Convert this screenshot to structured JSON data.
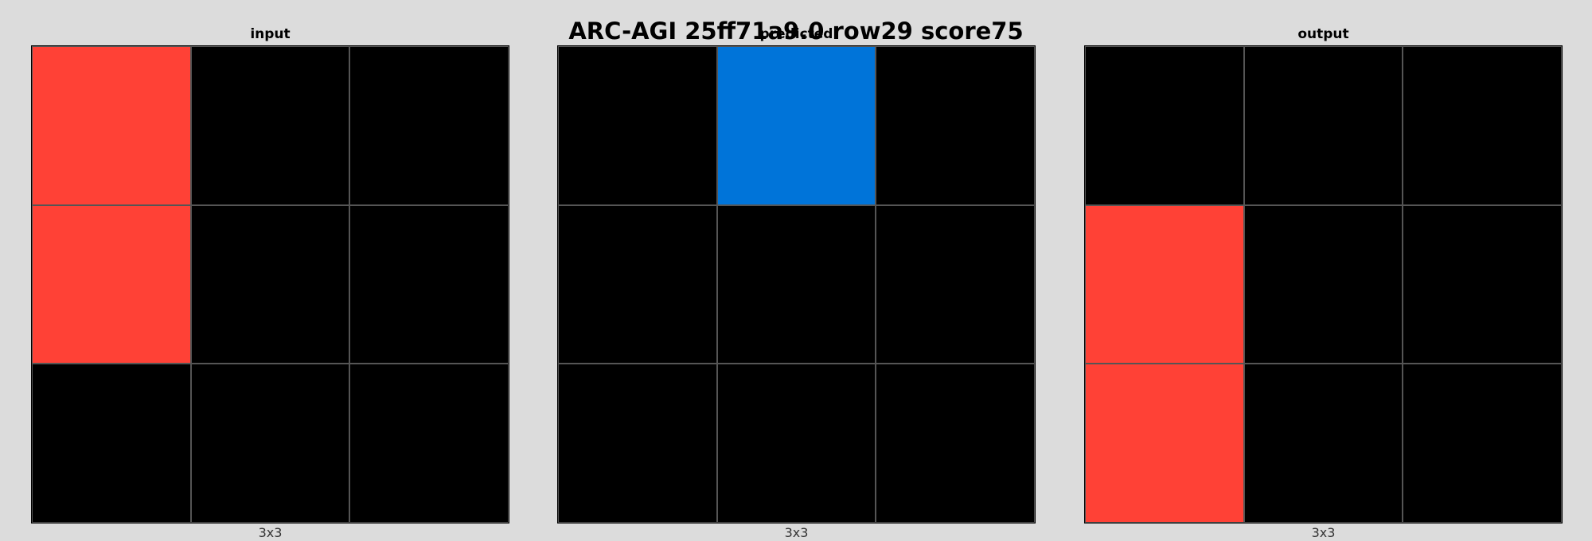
{
  "title": "ARC-AGI 25ff71a9.0 row29 score75",
  "palette": {
    "0": "#000000",
    "1": "#0074D9",
    "2": "#FF4136"
  },
  "panels": [
    {
      "label": "input",
      "size_label": "3x3",
      "grid": [
        [
          2,
          0,
          0
        ],
        [
          2,
          0,
          0
        ],
        [
          0,
          0,
          0
        ]
      ]
    },
    {
      "label": "predicted",
      "size_label": "3x3",
      "grid": [
        [
          0,
          1,
          0
        ],
        [
          0,
          0,
          0
        ],
        [
          0,
          0,
          0
        ]
      ]
    },
    {
      "label": "output",
      "size_label": "3x3",
      "grid": [
        [
          0,
          0,
          0
        ],
        [
          2,
          0,
          0
        ],
        [
          2,
          0,
          0
        ]
      ]
    }
  ]
}
